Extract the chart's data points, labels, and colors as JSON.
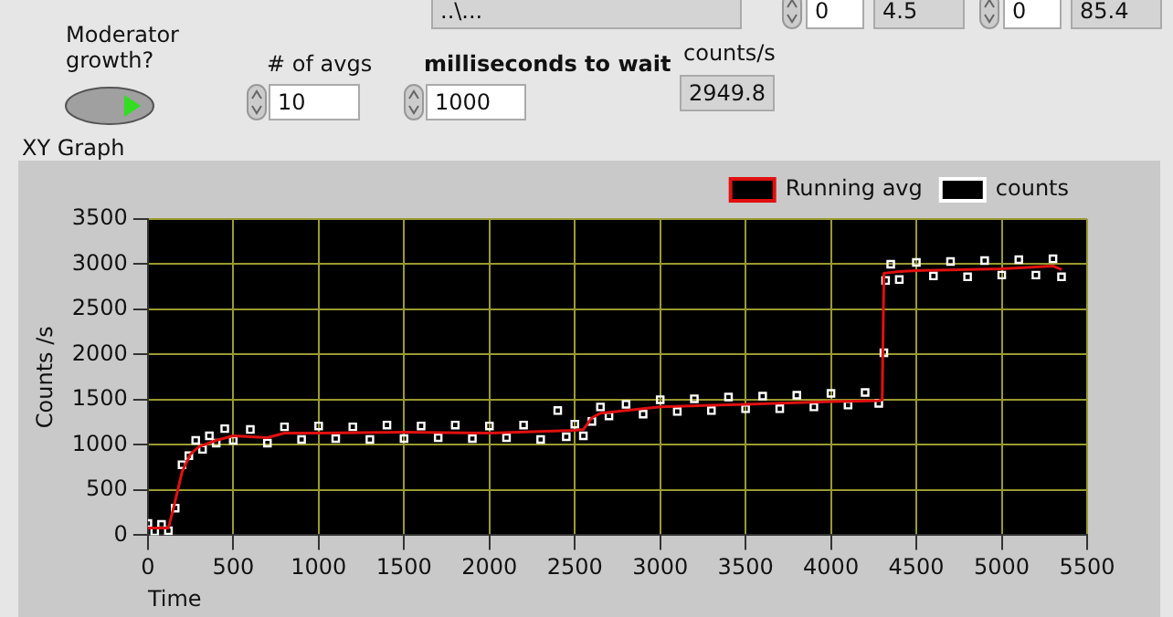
{
  "chart_data": {
    "type": "line",
    "title": "XY Graph",
    "xlabel": "Time",
    "ylabel": "Counts /s",
    "annotations": [
      "Moderator growth?",
      "# of avgs",
      "10",
      "milliseconds to wait",
      "1000",
      "counts/s",
      "2949.8",
      "..\\...",
      "0",
      "4.5",
      "0",
      "85.4"
    ],
    "xlim": [
      0,
      5500
    ],
    "xticks": [
      0,
      500,
      1000,
      1500,
      2000,
      2500,
      3000,
      3500,
      4000,
      4500,
      5000,
      5500
    ],
    "ylim": [
      0,
      3500
    ],
    "yticks": [
      0,
      500,
      1000,
      1500,
      2000,
      2500,
      3000,
      3500
    ],
    "grid": true,
    "legend": "top right",
    "series": [
      {
        "name": "Running avg",
        "type": "line",
        "color": "#e01010",
        "marker": "none",
        "line_style": "solid",
        "x": [
          0,
          120,
          150,
          200,
          250,
          300,
          400,
          500,
          700,
          800,
          1000,
          1500,
          2000,
          2500,
          2550,
          2600,
          2650,
          2800,
          3000,
          3500,
          4000,
          4280,
          4300,
          4310,
          4400,
          4500,
          5000,
          5300,
          5350
        ],
        "values": [
          80,
          80,
          300,
          700,
          900,
          980,
          1050,
          1100,
          1080,
          1130,
          1130,
          1140,
          1130,
          1160,
          1170,
          1300,
          1350,
          1380,
          1420,
          1450,
          1480,
          1490,
          1500,
          2900,
          2920,
          2930,
          2950,
          2980,
          2940
        ]
      },
      {
        "name": "counts",
        "type": "scatter",
        "color": "#ffffff",
        "marker": "square",
        "x": [
          0,
          40,
          80,
          120,
          160,
          200,
          240,
          280,
          320,
          360,
          400,
          450,
          500,
          600,
          700,
          800,
          900,
          1000,
          1100,
          1200,
          1300,
          1400,
          1500,
          1600,
          1700,
          1800,
          1900,
          2000,
          2100,
          2200,
          2300,
          2400,
          2450,
          2500,
          2550,
          2600,
          2650,
          2700,
          2800,
          2900,
          3000,
          3100,
          3200,
          3300,
          3400,
          3500,
          3600,
          3700,
          3800,
          3900,
          4000,
          4100,
          4200,
          4280,
          4310,
          4320,
          4350,
          4400,
          4500,
          4600,
          4700,
          4800,
          4900,
          5000,
          5100,
          5200,
          5300,
          5350
        ],
        "values": [
          130,
          40,
          120,
          50,
          300,
          780,
          880,
          1050,
          950,
          1100,
          1020,
          1180,
          1050,
          1170,
          1020,
          1200,
          1060,
          1210,
          1070,
          1200,
          1060,
          1220,
          1070,
          1210,
          1080,
          1220,
          1070,
          1210,
          1080,
          1220,
          1060,
          1380,
          1090,
          1230,
          1100,
          1260,
          1420,
          1320,
          1450,
          1340,
          1500,
          1370,
          1510,
          1380,
          1530,
          1400,
          1540,
          1400,
          1550,
          1420,
          1570,
          1440,
          1580,
          1460,
          2020,
          2820,
          3000,
          2830,
          3020,
          2870,
          3030,
          2860,
          3040,
          2880,
          3050,
          2880,
          3060,
          2860
        ]
      }
    ]
  }
}
